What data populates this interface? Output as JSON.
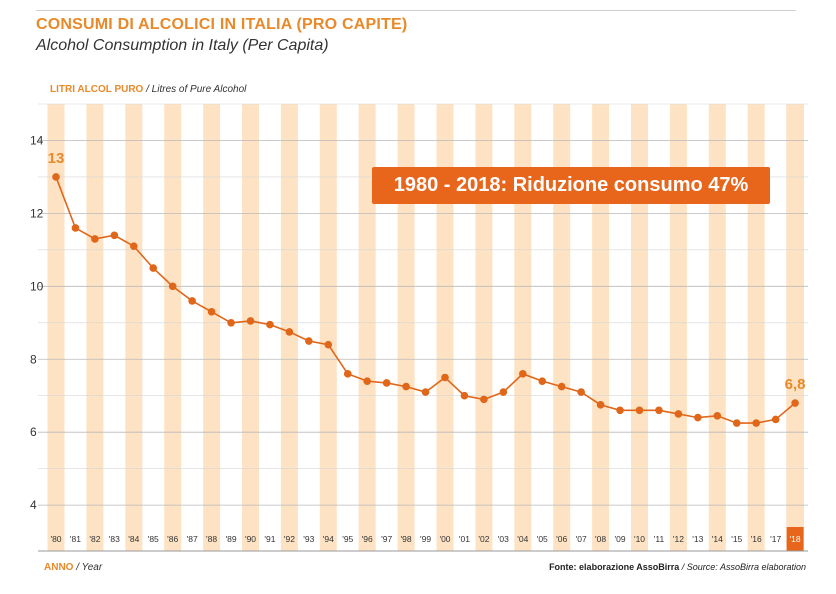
{
  "title": "CONSUMI DI ALCOLICI IN ITALIA (PRO CAPITE)",
  "subtitle": "Alcohol Consumption in Italy (Per Capita)",
  "y_label_it": "LITRI ALCOL PURO",
  "y_label_en": " / Litres of Pure Alcohol",
  "x_label_it": "ANNO",
  "x_label_en": " / Year",
  "source_it": "Fonte: elaborazione AssoBirra",
  "source_en": " / Source: AssoBirra elaboration",
  "callout": "1980 - 2018: Riduzione consumo 47%",
  "first_label": "13",
  "last_label": "6,8",
  "colors": {
    "accent": "#e8892a",
    "line": "#e0661a",
    "band": "#fde3c4",
    "highlight": "#e8661c"
  },
  "chart_data": {
    "type": "line",
    "y_ticks": [
      "4",
      "6",
      "8",
      "10",
      "12",
      "14"
    ],
    "ylim": [
      3.4,
      15
    ],
    "grid": true,
    "categories": [
      "'80",
      "'81",
      "'82",
      "'83",
      "'84",
      "'85",
      "'86",
      "'87",
      "'88",
      "'89",
      "'90",
      "'91",
      "'92",
      "'93",
      "'94",
      "'95",
      "'96",
      "'97",
      "'98",
      "'99",
      "'00",
      "'01",
      "'02",
      "'03",
      "'04",
      "'05",
      "'06",
      "'07",
      "'08",
      "'09",
      "'10",
      "'11",
      "'12",
      "'13",
      "'14",
      "'15",
      "'16",
      "'17",
      "'18"
    ],
    "values": [
      13.0,
      11.6,
      11.3,
      11.4,
      11.1,
      10.5,
      10.0,
      9.6,
      9.3,
      9.0,
      9.05,
      8.95,
      8.75,
      8.5,
      8.4,
      7.6,
      7.4,
      7.35,
      7.25,
      7.1,
      7.5,
      7.0,
      6.9,
      7.1,
      7.6,
      7.4,
      7.25,
      7.1,
      6.75,
      6.6,
      6.6,
      6.6,
      6.5,
      6.4,
      6.45,
      6.25,
      6.25,
      6.35,
      6.8
    ]
  }
}
